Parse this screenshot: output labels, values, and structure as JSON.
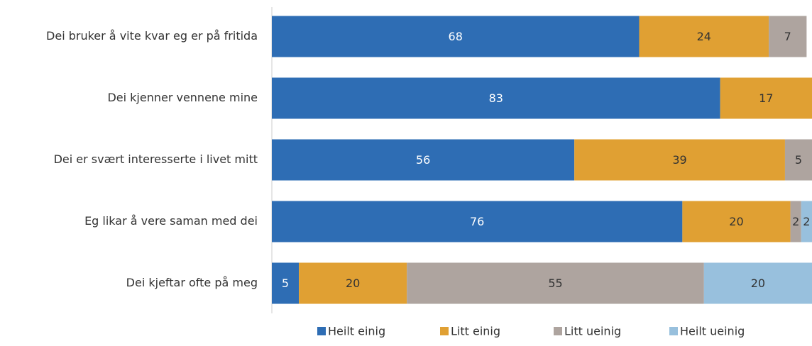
{
  "chart_data": {
    "type": "stacked_barh",
    "categories": [
      "Dei bruker å vite kvar eg er på fritida",
      "Dei kjenner vennene mine",
      "Dei er svært interesserte i livet mitt",
      "Eg likar å vere saman med dei",
      "Dei kjeftar ofte på meg"
    ],
    "series": [
      {
        "name": "Heilt einig",
        "color": "#2e6db4",
        "values": [
          68,
          83,
          56,
          76,
          5
        ]
      },
      {
        "name": "Litt einig",
        "color": "#e0a033",
        "values": [
          24,
          17,
          39,
          20,
          20
        ]
      },
      {
        "name": "Litt ueinig",
        "color": "#aea49f",
        "values": [
          7,
          null,
          5,
          2,
          55
        ]
      },
      {
        "name": "Heilt ueinig",
        "color": "#98c0dd",
        "values": [
          null,
          null,
          null,
          2,
          20
        ]
      }
    ],
    "xlim": [
      0,
      100
    ]
  }
}
